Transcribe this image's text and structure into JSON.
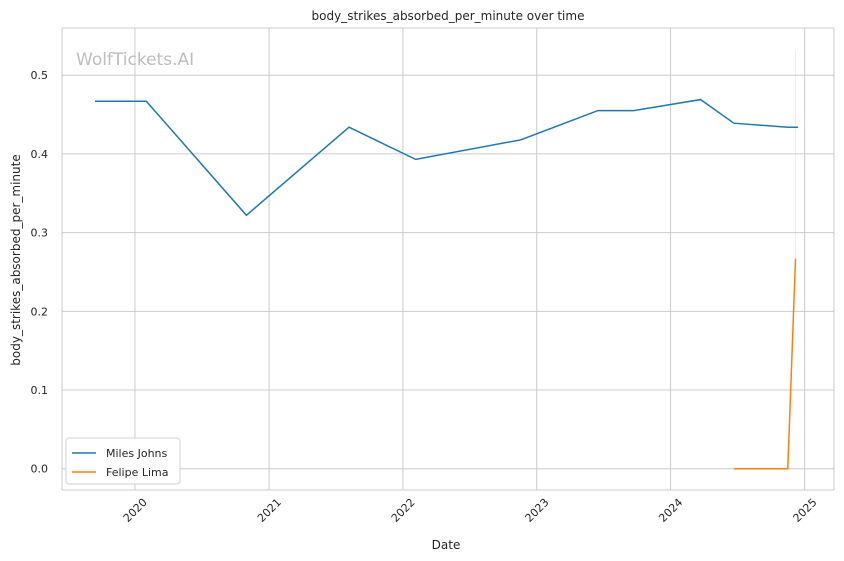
{
  "chart_data": {
    "type": "line",
    "title": "body_strikes_absorbed_per_minute over time",
    "xlabel": "Date",
    "ylabel": "body_strikes_absorbed_per_minute",
    "watermark": "WolfTickets.AI",
    "xlim": [
      "2019-06-16",
      "2025-03-22"
    ],
    "ylim": [
      -0.027,
      0.56
    ],
    "x_ticks": [
      "2020",
      "2021",
      "2022",
      "2023",
      "2024",
      "2025"
    ],
    "y_ticks": [
      "0.0",
      "0.1",
      "0.2",
      "0.3",
      "0.4",
      "0.5"
    ],
    "grid": true,
    "legend_position": "lower-left",
    "series": [
      {
        "name": "Miles Johns",
        "color": "#1f77b4",
        "points": [
          [
            "2019-09-14",
            0.467
          ],
          [
            "2020-02-01",
            0.467
          ],
          [
            "2020-10-31",
            0.322
          ],
          [
            "2021-08-07",
            0.434
          ],
          [
            "2022-02-05",
            0.393
          ],
          [
            "2022-11-19",
            0.418
          ],
          [
            "2023-06-17",
            0.455
          ],
          [
            "2023-09-23",
            0.455
          ],
          [
            "2024-03-23",
            0.469
          ],
          [
            "2024-06-22",
            0.439
          ],
          [
            "2024-11-16",
            0.434
          ],
          [
            "2024-12-14",
            0.434
          ]
        ]
      },
      {
        "name": "Felipe Lima",
        "color": "#ff7f0e",
        "points": [
          [
            "2024-06-22",
            0.0
          ],
          [
            "2024-11-16",
            0.0
          ],
          [
            "2024-12-07",
            0.267
          ]
        ]
      }
    ]
  }
}
